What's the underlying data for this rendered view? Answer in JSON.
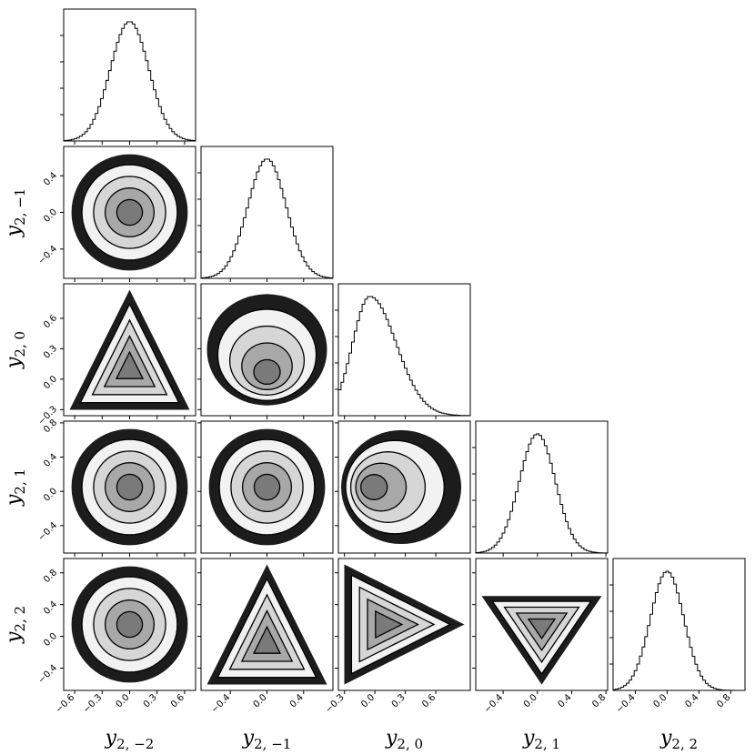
{
  "chart_data": {
    "type": "corner",
    "variables": [
      {
        "label_main": "y",
        "label_sub": "2, −2",
        "range": [
          -0.72,
          0.72
        ],
        "ticks": [
          -0.6,
          -0.3,
          0.0,
          0.3,
          0.6
        ],
        "tick_labels": [
          "−0.6",
          "−0.3",
          "0.0",
          "0.3",
          "0.6"
        ],
        "hist_peak": 0.0,
        "hist_sd": 0.21
      },
      {
        "label_main": "y",
        "label_sub": "2, −1",
        "range": [
          -0.72,
          0.72
        ],
        "ticks": [
          -0.4,
          0.0,
          0.4
        ],
        "tick_labels": [
          "−0.4",
          "0.0",
          "0.4"
        ],
        "hist_peak": 0.0,
        "hist_sd": 0.21
      },
      {
        "label_main": "y",
        "label_sub": "2, 0",
        "range": [
          -0.36,
          0.94
        ],
        "ticks": [
          -0.3,
          0.0,
          0.3,
          0.6
        ],
        "tick_labels": [
          "−0.3",
          "0.0",
          "0.3",
          "0.6"
        ],
        "hist_peak": -0.05,
        "hist_sd": 0.22
      },
      {
        "label_main": "y",
        "label_sub": "2, 1",
        "range": [
          -0.72,
          0.82
        ],
        "ticks": [
          -0.4,
          0.0,
          0.4,
          0.8
        ],
        "tick_labels": [
          "−0.4",
          "0.0",
          "0.4",
          "0.8"
        ],
        "hist_peak": 0.0,
        "hist_sd": 0.21
      },
      {
        "label_main": "y",
        "label_sub": "2, 2",
        "range": [
          -0.68,
          0.98
        ],
        "ticks": [
          -0.4,
          0.0,
          0.4,
          0.8
        ],
        "tick_labels": [
          "−0.4",
          "0.0",
          "0.4",
          "0.8"
        ],
        "hist_peak": 0.0,
        "hist_sd": 0.21
      }
    ],
    "y_tick_overrides": {
      "2": {
        "ticks": [
          -0.3,
          0.0,
          0.3,
          0.6
        ],
        "tick_labels": [
          "−0.3",
          "0.0",
          "0.3",
          "0.6"
        ]
      },
      "3": {
        "ticks": [
          -0.4,
          0.0,
          0.4,
          0.8
        ],
        "tick_labels": [
          "−0.4",
          "0.0",
          "0.4",
          "0.8"
        ]
      },
      "4": {
        "ticks": [
          -0.4,
          0.0,
          0.4,
          0.8
        ],
        "tick_labels": [
          "−0.4",
          "0.0",
          "0.4",
          "0.8"
        ]
      }
    },
    "panel_shapes": {
      "1-0": "disk",
      "2-0": "triangle-up",
      "2-1": "blob-flat-bottom",
      "3-0": "disk",
      "3-1": "disk",
      "3-2": "disk-offset-left",
      "4-0": "disk",
      "4-1": "triangle-up",
      "4-2": "triangle-right",
      "4-3": "triangle-down"
    },
    "grid": false,
    "legend": "none",
    "colors": {
      "density_dark": "#1a1a1a",
      "density_light": "#f5f5f5",
      "contour": "#000000",
      "hist_line": "#000000"
    }
  }
}
